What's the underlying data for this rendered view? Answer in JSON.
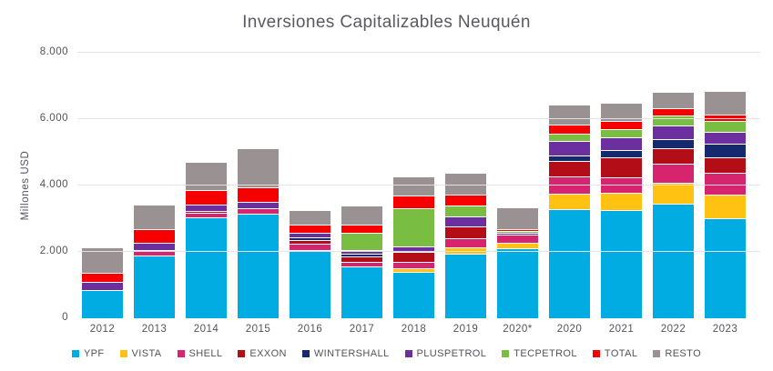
{
  "chart_data": {
    "type": "bar",
    "stacked": true,
    "title": "Inversiones Capitalizables Neuquén",
    "xlabel": "",
    "ylabel": "Millones USD",
    "ylim": [
      0,
      8000
    ],
    "ytick_values": [
      0,
      2000,
      4000,
      6000,
      8000
    ],
    "ytick_labels": [
      "0",
      "2.000",
      "4.000",
      "6.000",
      "8.000"
    ],
    "grid": "horizontal",
    "legend_position": "bottom",
    "categories": [
      "2012",
      "2013",
      "2014",
      "2015",
      "2016",
      "2017",
      "2018",
      "2019",
      "2020*",
      "2020",
      "2021",
      "2022",
      "2023"
    ],
    "series": [
      {
        "name": "YPF",
        "color": "#00ACE2",
        "values": [
          850,
          1900,
          3050,
          3150,
          2050,
          1550,
          1400,
          1950,
          2100,
          3300,
          3250,
          3450,
          3000
        ]
      },
      {
        "name": "VISTA",
        "color": "#FFC112",
        "values": [
          0,
          0,
          0,
          0,
          0,
          0,
          100,
          200,
          175,
          460,
          530,
          620,
          700
        ]
      },
      {
        "name": "SHELL",
        "color": "#D6246E",
        "values": [
          0,
          175,
          150,
          175,
          200,
          140,
          180,
          280,
          250,
          510,
          460,
          580,
          650
        ]
      },
      {
        "name": "EXXON",
        "color": "#B30E18",
        "values": [
          0,
          0,
          50,
          0,
          100,
          170,
          290,
          350,
          0,
          460,
          610,
          460,
          460
        ]
      },
      {
        "name": "WINTERSHALL",
        "color": "#152A6E",
        "values": [
          0,
          0,
          0,
          0,
          75,
          75,
          0,
          0,
          0,
          170,
          220,
          275,
          410
        ]
      },
      {
        "name": "PLUSPETROL",
        "color": "#6C2FA0",
        "values": [
          250,
          225,
          200,
          200,
          150,
          120,
          160,
          300,
          60,
          450,
          380,
          410,
          360
        ]
      },
      {
        "name": "TECPETROL",
        "color": "#79BE43",
        "values": [
          0,
          0,
          0,
          0,
          0,
          525,
          1150,
          330,
          60,
          230,
          250,
          290,
          320
        ]
      },
      {
        "name": "TOTAL",
        "color": "#F70000",
        "values": [
          275,
          400,
          450,
          450,
          250,
          250,
          370,
          330,
          60,
          280,
          250,
          230,
          180
        ]
      },
      {
        "name": "RESTO",
        "color": "#9A9193",
        "values": [
          775,
          750,
          850,
          1175,
          450,
          570,
          580,
          650,
          645,
          590,
          550,
          500,
          700
        ]
      }
    ]
  }
}
